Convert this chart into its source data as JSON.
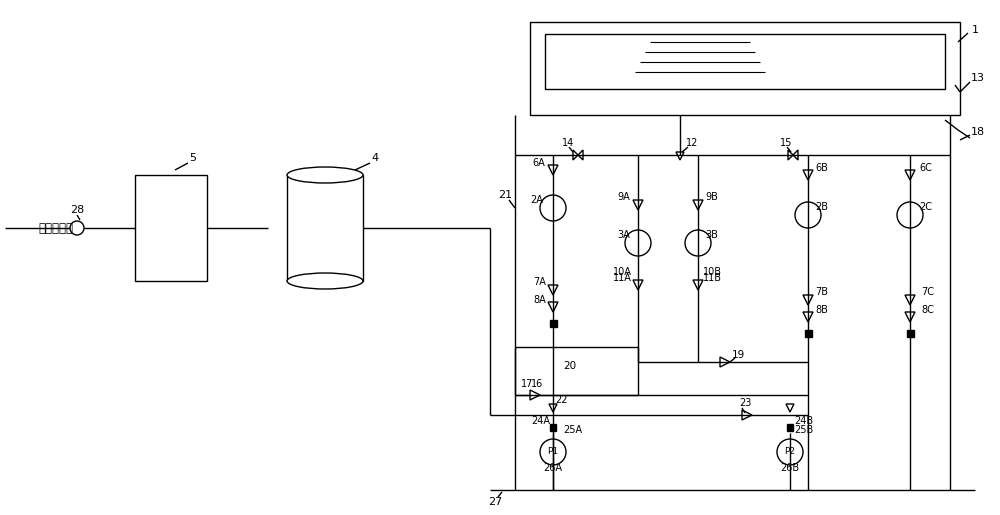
{
  "bg_color": "#ffffff",
  "line_color": "#000000",
  "lw": 1.0,
  "label_hotnet": "热网补水点",
  "label_28": "28",
  "label_5": "5",
  "label_4": "4",
  "label_1": "1",
  "label_13": "13",
  "label_18": "18",
  "label_21": "21",
  "label_27": "27",
  "label_6A": "6A",
  "label_2A": "2A",
  "label_9A": "9A",
  "label_3A": "3A",
  "label_10A": "10A",
  "label_11A": "11A",
  "label_7A": "7A",
  "label_8A": "8A",
  "label_17": "17",
  "label_16": "16",
  "label_22": "22",
  "label_24A": "24A",
  "label_25A": "25A",
  "label_26A": "26A",
  "label_9B": "9B",
  "label_3B": "3B",
  "label_10B": "10B",
  "label_11B": "11B",
  "label_19": "19",
  "label_20": "20",
  "label_23": "23",
  "label_24B": "24B",
  "label_25B": "25B",
  "label_26B": "26B",
  "label_6B": "6B",
  "label_2B": "2B",
  "label_7B": "7B",
  "label_8B": "8B",
  "label_6C": "6C",
  "label_2C": "2C",
  "label_7C": "7C",
  "label_8C": "8C",
  "label_14": "14",
  "label_12": "12",
  "label_15": "15"
}
